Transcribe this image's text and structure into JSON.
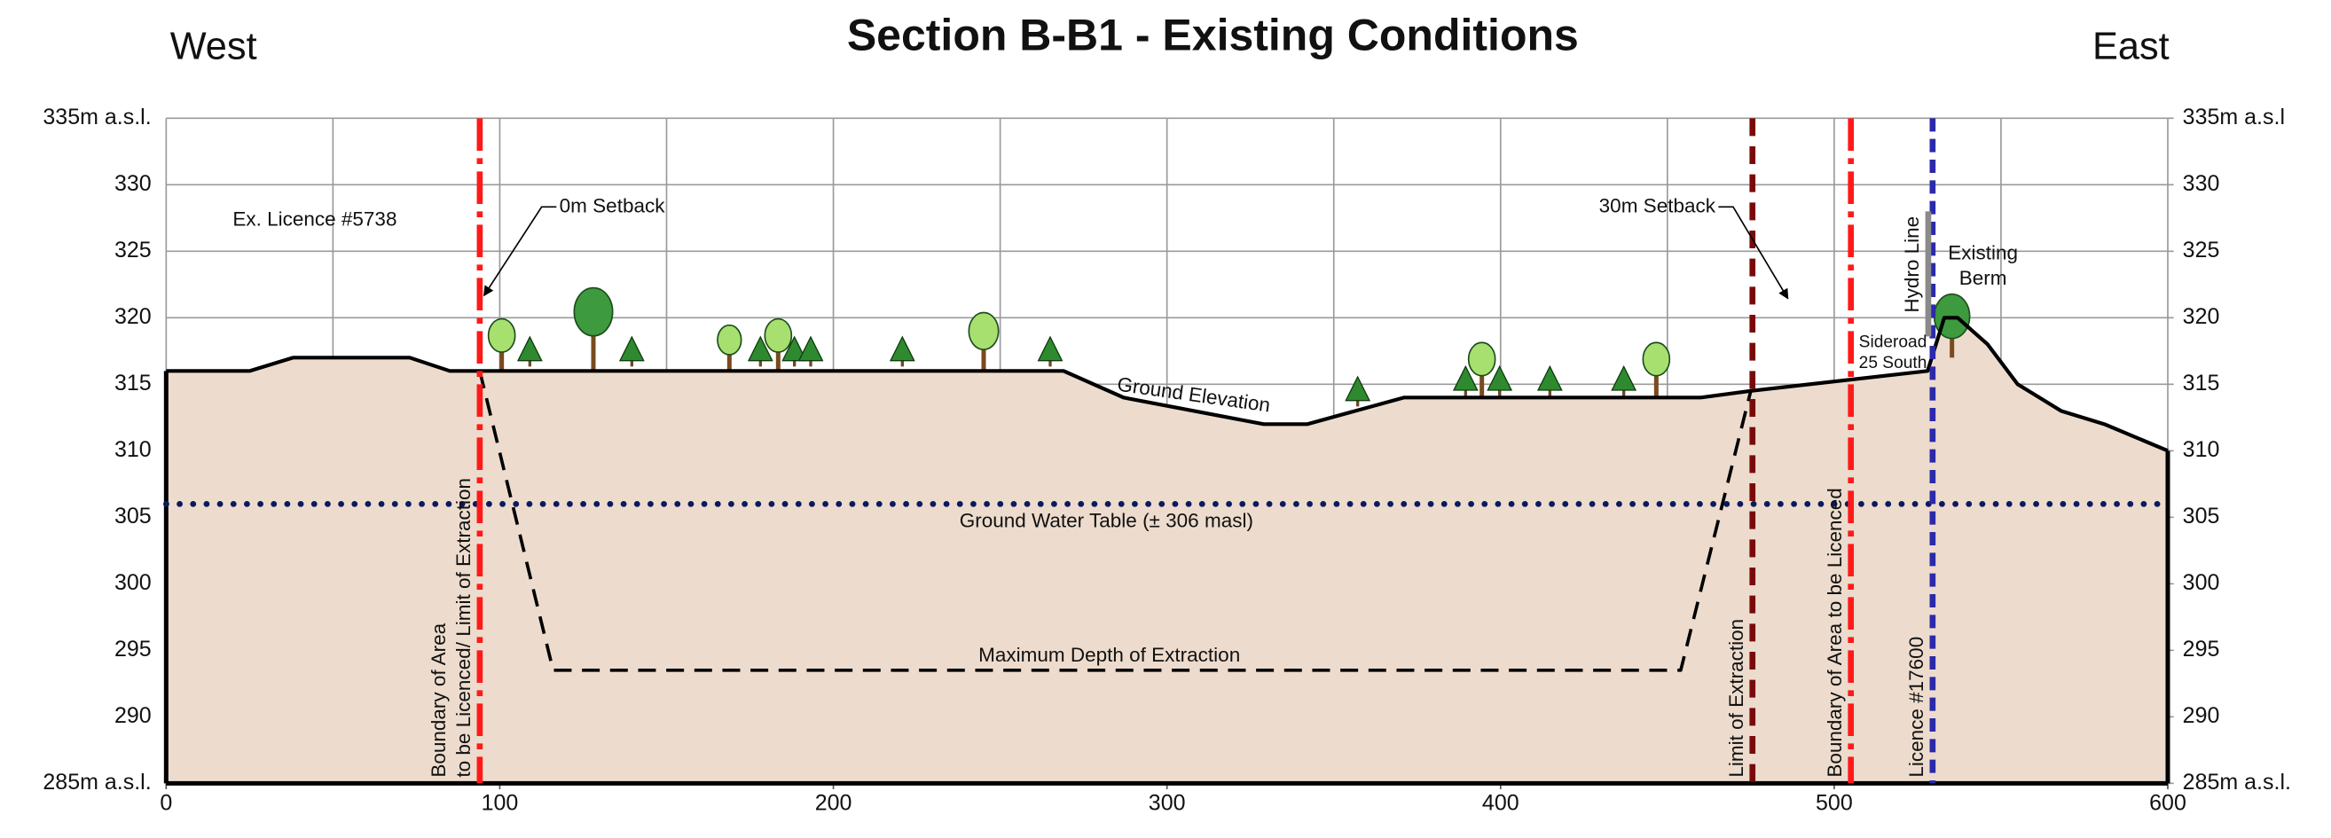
{
  "chart_data": {
    "type": "line",
    "title": "Section B-B1 - Existing Conditions",
    "west_label": "West",
    "east_label": "East",
    "xlim": [
      0,
      600
    ],
    "xticks": [
      0,
      100,
      200,
      300,
      400,
      500,
      600
    ],
    "xgrid": [
      0,
      50,
      100,
      150,
      200,
      250,
      300,
      350,
      400,
      450,
      500,
      550,
      600
    ],
    "ylim": [
      285,
      335
    ],
    "yticks": [
      {
        "value": 285,
        "label": "285m a.s.l."
      },
      290,
      295,
      300,
      305,
      310,
      315,
      320,
      325,
      330,
      {
        "value": 335,
        "label": "335m a.s.l."
      }
    ],
    "y2lim": [
      285,
      335
    ],
    "y2ticks": [
      {
        "value": 285,
        "label": "285m a.s.l."
      },
      290,
      295,
      300,
      305,
      310,
      315,
      320,
      325,
      330,
      {
        "value": 335,
        "label": "335m a.s.l"
      }
    ],
    "grid": true,
    "series": [
      {
        "name": "Ground Elevation",
        "color": "#000000",
        "fill": "#eddccd",
        "style": "solid",
        "x": [
          0,
          25,
          38,
          73,
          85,
          269,
          287,
          329,
          342,
          371,
          460,
          475,
          528,
          533,
          537,
          546,
          555,
          568,
          581,
          600
        ],
        "values": [
          316,
          316,
          317,
          317,
          316,
          316,
          314,
          312,
          312,
          314,
          314,
          314.5,
          316,
          320,
          320,
          318,
          315,
          313,
          312,
          310
        ]
      },
      {
        "name": "Maximum Depth of Extraction",
        "color": "#000000",
        "style": "dashed",
        "x": [
          94,
          116,
          454,
          475
        ],
        "values": [
          316,
          293.5,
          293.5,
          314.5
        ]
      },
      {
        "name": "Ground Water Table (± 306 masl)",
        "color": "#0b1a5e",
        "style": "dotted",
        "x": [
          0,
          600
        ],
        "values": [
          306,
          306
        ]
      }
    ],
    "vlines": [
      {
        "x": 94,
        "color": "#ff1a1a",
        "style": "dashdot",
        "label": [
          "Boundary of Area",
          "to be Licenced/ Limit of Extraction"
        ]
      },
      {
        "x": 475.5,
        "color": "#7a0a0a",
        "style": "dashed",
        "label": [
          "Limit of Extraction"
        ]
      },
      {
        "x": 505,
        "color": "#ff1a1a",
        "style": "dashdot",
        "label": [
          "Boundary of Area to be Licenced"
        ]
      },
      {
        "x": 529.5,
        "color": "#2a2aaa",
        "style": "shortdash",
        "label": [
          "Licence #17600"
        ]
      }
    ],
    "hydro_line": {
      "label": "Hydro Line",
      "x": 528.2,
      "range": [
        318.6,
        328
      ]
    },
    "annotations": {
      "ex_licence": "Ex. Licence #5738",
      "setback_0": "0m Setback",
      "setback_30": "30m Setback",
      "berm": [
        "Existing",
        "Berm"
      ],
      "sideroad": [
        "Sideroad",
        "25 South"
      ]
    }
  }
}
